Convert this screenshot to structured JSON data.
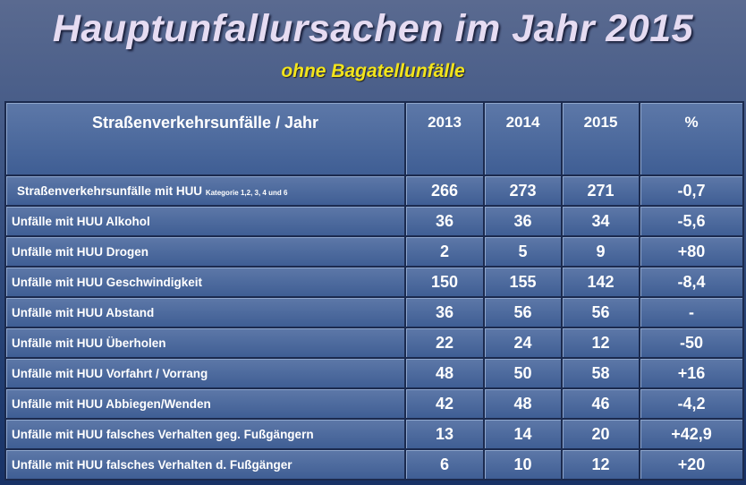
{
  "title": "Hauptunfallursachen im Jahr 2015",
  "subtitle": "ohne Bagatellunfälle",
  "table": {
    "header": [
      "Straßenverkehrsunfälle / Jahr",
      "2013",
      "2014",
      "2015",
      "%"
    ],
    "rows": [
      {
        "label": "Straßenverkehrsunfälle mit HUU",
        "note": "Kategorie 1,2, 3, 4 und 6",
        "cells": [
          "266",
          "273",
          "271",
          "-0,7"
        ]
      },
      {
        "label": "Unfälle mit HUU Alkohol",
        "cells": [
          "36",
          "36",
          "34",
          "-5,6"
        ]
      },
      {
        "label": "Unfälle mit HUU Drogen",
        "cells": [
          "2",
          "5",
          "9",
          "+80"
        ]
      },
      {
        "label": "Unfälle mit HUU Geschwindigkeit",
        "cells": [
          "150",
          "155",
          "142",
          "-8,4"
        ]
      },
      {
        "label": "Unfälle mit HUU Abstand",
        "cells": [
          "36",
          "56",
          "56",
          "-"
        ]
      },
      {
        "label": "Unfälle mit HUU Überholen",
        "cells": [
          "22",
          "24",
          "12",
          "-50"
        ]
      },
      {
        "label": "Unfälle mit HUU Vorfahrt / Vorrang",
        "cells": [
          "48",
          "50",
          "58",
          "+16"
        ]
      },
      {
        "label": "Unfälle mit HUU Abbiegen/Wenden",
        "cells": [
          "42",
          "48",
          "46",
          "-4,2"
        ]
      },
      {
        "label": "Unfälle mit HUU falsches Verhalten geg. Fußgängern",
        "cells": [
          "13",
          "14",
          "20",
          "+42,9"
        ]
      },
      {
        "label": "Unfälle mit HUU falsches Verhalten d. Fußgänger",
        "cells": [
          "6",
          "10",
          "12",
          "+20"
        ]
      }
    ]
  }
}
